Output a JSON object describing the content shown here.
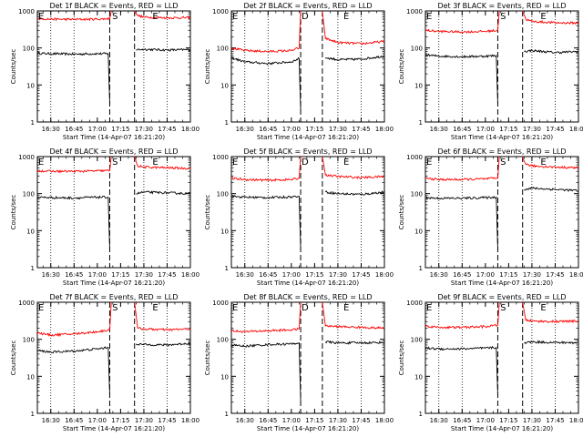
{
  "figure": {
    "colors": {
      "events": "#000000",
      "lld": "#ff0000",
      "axes": "#000000",
      "background": "#ffffff"
    },
    "xlabel": "Start Time (14-Apr-07 16:21:20)",
    "ylabel": "Counts/sec",
    "x_tick_labels": [
      "16:30",
      "16:45",
      "17:00",
      "17:15",
      "17:30",
      "17:45",
      "18:00"
    ],
    "y_tick_labels": [
      "1",
      "10",
      "100",
      "1000"
    ]
  },
  "chart_data": [
    {
      "type": "line",
      "title": "Det 1f BLACK = Events, RED = LLD",
      "xlim": [
        "16:21:20",
        "18:00:00"
      ],
      "ylim": [
        1,
        1000
      ],
      "yscale": "log",
      "dotted_lines": [
        "16:30",
        "16:45",
        "17:30",
        "17:45"
      ],
      "dashed_lines": [
        "17:08",
        "17:24"
      ],
      "markers": [
        {
          "label": "E",
          "x": "16:21"
        },
        {
          "label": "S",
          "x": "17:09"
        },
        {
          "label": "E",
          "x": "17:35"
        }
      ],
      "series": [
        {
          "name": "Events",
          "color": "#000000",
          "x": [
            "16:21",
            "16:30",
            "16:45",
            "17:00",
            "17:07",
            "17:08",
            "17:24",
            "17:25",
            "17:30",
            "17:45",
            "18:00"
          ],
          "y": [
            72,
            70,
            68,
            70,
            70,
            3,
            null,
            90,
            92,
            88,
            90
          ]
        },
        {
          "name": "LLD",
          "color": "#ff0000",
          "x": [
            "16:21",
            "16:30",
            "16:45",
            "17:00",
            "17:08",
            "17:09",
            "17:23",
            "17:24",
            "17:26",
            "17:30",
            "17:45",
            "18:00"
          ],
          "y": [
            620,
            600,
            590,
            600,
            620,
            1000,
            null,
            1000,
            750,
            680,
            650,
            660
          ]
        }
      ]
    },
    {
      "type": "line",
      "title": "Det 2f BLACK = Events, RED = LLD",
      "xlim": [
        "16:21:20",
        "18:00:00"
      ],
      "ylim": [
        1,
        1000
      ],
      "yscale": "log",
      "dotted_lines": [
        "16:30",
        "16:45",
        "17:30",
        "17:45"
      ],
      "dashed_lines": [
        "17:06",
        "17:20"
      ],
      "markers": [
        {
          "label": "E",
          "x": "16:21"
        },
        {
          "label": "D",
          "x": "17:06"
        },
        {
          "label": "E",
          "x": "17:33"
        }
      ],
      "series": [
        {
          "name": "Events",
          "color": "#000000",
          "x": [
            "16:21",
            "16:30",
            "16:45",
            "17:00",
            "17:05",
            "17:06",
            "17:20",
            "17:22",
            "17:30",
            "17:45",
            "18:00"
          ],
          "y": [
            55,
            42,
            38,
            42,
            52,
            2,
            null,
            55,
            48,
            50,
            60
          ]
        },
        {
          "name": "LLD",
          "color": "#ff0000",
          "x": [
            "16:21",
            "16:30",
            "16:45",
            "17:00",
            "17:05",
            "17:06",
            "17:19",
            "17:20",
            "17:22",
            "17:30",
            "17:45",
            "18:00"
          ],
          "y": [
            100,
            85,
            80,
            85,
            100,
            1000,
            null,
            1000,
            180,
            140,
            130,
            150
          ]
        }
      ]
    },
    {
      "type": "line",
      "title": "Det 3f BLACK = Events, RED = LLD",
      "xlim": [
        "16:21:20",
        "18:00:00"
      ],
      "ylim": [
        1,
        1000
      ],
      "yscale": "log",
      "dotted_lines": [
        "16:30",
        "16:45",
        "17:30",
        "17:45"
      ],
      "dashed_lines": [
        "17:08",
        "17:24"
      ],
      "markers": [
        {
          "label": "E",
          "x": "16:21"
        },
        {
          "label": "S",
          "x": "17:09"
        },
        {
          "label": "E",
          "x": "17:35"
        }
      ],
      "series": [
        {
          "name": "Events",
          "color": "#000000",
          "x": [
            "16:21",
            "16:30",
            "16:45",
            "17:00",
            "17:07",
            "17:08",
            "17:24",
            "17:25",
            "17:30",
            "17:45",
            "18:00"
          ],
          "y": [
            65,
            60,
            58,
            60,
            62,
            3,
            null,
            80,
            85,
            75,
            80
          ]
        },
        {
          "name": "LLD",
          "color": "#ff0000",
          "x": [
            "16:21",
            "16:30",
            "16:45",
            "17:00",
            "17:08",
            "17:09",
            "17:23",
            "17:24",
            "17:26",
            "17:30",
            "17:45",
            "18:00"
          ],
          "y": [
            300,
            280,
            270,
            280,
            300,
            1000,
            null,
            1000,
            600,
            520,
            480,
            470
          ]
        }
      ]
    },
    {
      "type": "line",
      "title": "Det 4f BLACK = Events, RED = LLD",
      "xlim": [
        "16:21:20",
        "18:00:00"
      ],
      "ylim": [
        1,
        1000
      ],
      "yscale": "log",
      "dotted_lines": [
        "16:30",
        "16:45",
        "17:30",
        "17:45"
      ],
      "dashed_lines": [
        "17:08",
        "17:24"
      ],
      "markers": [
        {
          "label": "E",
          "x": "16:21"
        },
        {
          "label": "S",
          "x": "17:09"
        },
        {
          "label": "E",
          "x": "17:35"
        }
      ],
      "series": [
        {
          "name": "Events",
          "color": "#000000",
          "x": [
            "16:21",
            "16:30",
            "16:45",
            "17:00",
            "17:07",
            "17:08",
            "17:24",
            "17:25",
            "17:30",
            "17:45",
            "18:00"
          ],
          "y": [
            80,
            78,
            76,
            80,
            80,
            3,
            null,
            100,
            110,
            105,
            100
          ]
        },
        {
          "name": "LLD",
          "color": "#ff0000",
          "x": [
            "16:21",
            "16:30",
            "16:45",
            "17:00",
            "17:08",
            "17:09",
            "17:23",
            "17:24",
            "17:26",
            "17:30",
            "17:45",
            "18:00"
          ],
          "y": [
            420,
            400,
            400,
            410,
            420,
            1000,
            null,
            1000,
            560,
            520,
            500,
            480
          ]
        }
      ]
    },
    {
      "type": "line",
      "title": "Det 5f BLACK = Events, RED = LLD",
      "xlim": [
        "16:21:20",
        "18:00:00"
      ],
      "ylim": [
        1,
        1000
      ],
      "yscale": "log",
      "dotted_lines": [
        "16:30",
        "16:45",
        "17:30",
        "17:45"
      ],
      "dashed_lines": [
        "17:06",
        "17:20"
      ],
      "markers": [
        {
          "label": "E",
          "x": "16:21"
        },
        {
          "label": "D",
          "x": "17:06"
        },
        {
          "label": "E",
          "x": "17:33"
        }
      ],
      "series": [
        {
          "name": "Events",
          "color": "#000000",
          "x": [
            "16:21",
            "16:30",
            "16:45",
            "17:00",
            "17:05",
            "17:06",
            "17:20",
            "17:22",
            "17:30",
            "17:45",
            "18:00"
          ],
          "y": [
            85,
            80,
            78,
            82,
            85,
            3,
            null,
            110,
            100,
            95,
            110
          ]
        },
        {
          "name": "LLD",
          "color": "#ff0000",
          "x": [
            "16:21",
            "16:30",
            "16:45",
            "17:00",
            "17:05",
            "17:06",
            "17:19",
            "17:20",
            "17:22",
            "17:30",
            "17:45",
            "18:00"
          ],
          "y": [
            260,
            240,
            230,
            240,
            260,
            1000,
            null,
            1000,
            320,
            290,
            270,
            290
          ]
        }
      ]
    },
    {
      "type": "line",
      "title": "Det 6f BLACK = Events, RED = LLD",
      "xlim": [
        "16:21:20",
        "18:00:00"
      ],
      "ylim": [
        1,
        1000
      ],
      "yscale": "log",
      "dotted_lines": [
        "16:30",
        "16:45",
        "17:30",
        "17:45"
      ],
      "dashed_lines": [
        "17:08",
        "17:24"
      ],
      "markers": [
        {
          "label": "E",
          "x": "16:21"
        },
        {
          "label": "S",
          "x": "17:09"
        },
        {
          "label": "E",
          "x": "17:35"
        }
      ],
      "series": [
        {
          "name": "Events",
          "color": "#000000",
          "x": [
            "16:21",
            "16:30",
            "16:45",
            "17:00",
            "17:07",
            "17:08",
            "17:24",
            "17:25",
            "17:30",
            "17:45",
            "18:00"
          ],
          "y": [
            78,
            75,
            75,
            78,
            80,
            3,
            null,
            130,
            140,
            130,
            120
          ]
        },
        {
          "name": "LLD",
          "color": "#ff0000",
          "x": [
            "16:21",
            "16:30",
            "16:45",
            "17:00",
            "17:08",
            "17:09",
            "17:23",
            "17:24",
            "17:26",
            "17:30",
            "17:45",
            "18:00"
          ],
          "y": [
            260,
            240,
            240,
            250,
            260,
            1000,
            null,
            1000,
            620,
            560,
            520,
            500
          ]
        }
      ]
    },
    {
      "type": "line",
      "title": "Det 7f BLACK = Events, RED = LLD",
      "xlim": [
        "16:21:20",
        "18:00:00"
      ],
      "ylim": [
        1,
        1000
      ],
      "yscale": "log",
      "dotted_lines": [
        "16:30",
        "16:45",
        "17:30",
        "17:45"
      ],
      "dashed_lines": [
        "17:08",
        "17:24"
      ],
      "markers": [
        {
          "label": "E",
          "x": "16:21"
        },
        {
          "label": "S",
          "x": "17:09"
        },
        {
          "label": "E",
          "x": "17:35"
        }
      ],
      "series": [
        {
          "name": "Events",
          "color": "#000000",
          "x": [
            "16:21",
            "16:30",
            "16:45",
            "17:00",
            "17:07",
            "17:08",
            "17:24",
            "17:25",
            "17:30",
            "17:45",
            "18:00"
          ],
          "y": [
            50,
            45,
            48,
            55,
            60,
            3,
            null,
            75,
            72,
            70,
            78
          ]
        },
        {
          "name": "LLD",
          "color": "#ff0000",
          "x": [
            "16:21",
            "16:30",
            "16:45",
            "17:00",
            "17:08",
            "17:09",
            "17:23",
            "17:24",
            "17:26",
            "17:30",
            "17:45",
            "18:00"
          ],
          "y": [
            150,
            130,
            140,
            160,
            180,
            1000,
            null,
            1000,
            200,
            190,
            180,
            190
          ]
        }
      ]
    },
    {
      "type": "line",
      "title": "Det 8f BLACK = Events, RED = LLD",
      "xlim": [
        "16:21:20",
        "18:00:00"
      ],
      "ylim": [
        1,
        1000
      ],
      "yscale": "log",
      "dotted_lines": [
        "16:30",
        "16:45",
        "17:30",
        "17:45"
      ],
      "dashed_lines": [
        "17:06",
        "17:20"
      ],
      "markers": [
        {
          "label": "E",
          "x": "16:21"
        },
        {
          "label": "D",
          "x": "17:06"
        },
        {
          "label": "E",
          "x": "17:33"
        }
      ],
      "series": [
        {
          "name": "Events",
          "color": "#000000",
          "x": [
            "16:21",
            "16:30",
            "16:45",
            "17:00",
            "17:05",
            "17:06",
            "17:20",
            "17:22",
            "17:30",
            "17:45",
            "18:00"
          ],
          "y": [
            70,
            65,
            72,
            75,
            80,
            2,
            null,
            85,
            80,
            80,
            82
          ]
        },
        {
          "name": "LLD",
          "color": "#ff0000",
          "x": [
            "16:21",
            "16:30",
            "16:45",
            "17:00",
            "17:05",
            "17:06",
            "17:19",
            "17:20",
            "17:22",
            "17:30",
            "17:45",
            "18:00"
          ],
          "y": [
            170,
            160,
            170,
            180,
            190,
            1000,
            null,
            1000,
            230,
            220,
            210,
            200
          ]
        }
      ]
    },
    {
      "type": "line",
      "title": "Det 9f BLACK = Events, RED = LLD",
      "xlim": [
        "16:21:20",
        "18:00:00"
      ],
      "ylim": [
        1,
        1000
      ],
      "yscale": "log",
      "dotted_lines": [
        "16:30",
        "16:45",
        "17:30",
        "17:45"
      ],
      "dashed_lines": [
        "17:08",
        "17:24"
      ],
      "markers": [
        {
          "label": "E",
          "x": "16:21"
        },
        {
          "label": "S",
          "x": "17:09"
        },
        {
          "label": "E",
          "x": "17:35"
        }
      ],
      "series": [
        {
          "name": "Events",
          "color": "#000000",
          "x": [
            "16:21",
            "16:30",
            "16:45",
            "17:00",
            "17:07",
            "17:08",
            "17:24",
            "17:25",
            "17:30",
            "17:45",
            "18:00"
          ],
          "y": [
            58,
            55,
            55,
            58,
            60,
            3,
            null,
            80,
            85,
            82,
            80
          ]
        },
        {
          "name": "LLD",
          "color": "#ff0000",
          "x": [
            "16:21",
            "16:30",
            "16:45",
            "17:00",
            "17:08",
            "17:09",
            "17:23",
            "17:24",
            "17:26",
            "17:30",
            "17:45",
            "18:00"
          ],
          "y": [
            230,
            210,
            210,
            220,
            240,
            1000,
            null,
            1000,
            330,
            310,
            300,
            310
          ]
        }
      ]
    }
  ]
}
